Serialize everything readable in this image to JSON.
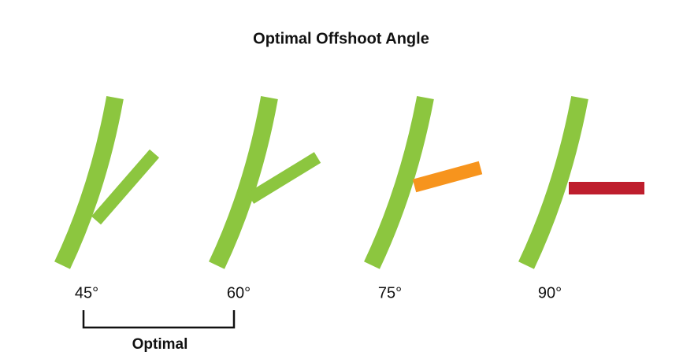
{
  "title": "Optimal Offshoot Angle",
  "angles": [
    "45°",
    "60°",
    "75°",
    "90°"
  ],
  "bracket_label": "Optimal"
}
